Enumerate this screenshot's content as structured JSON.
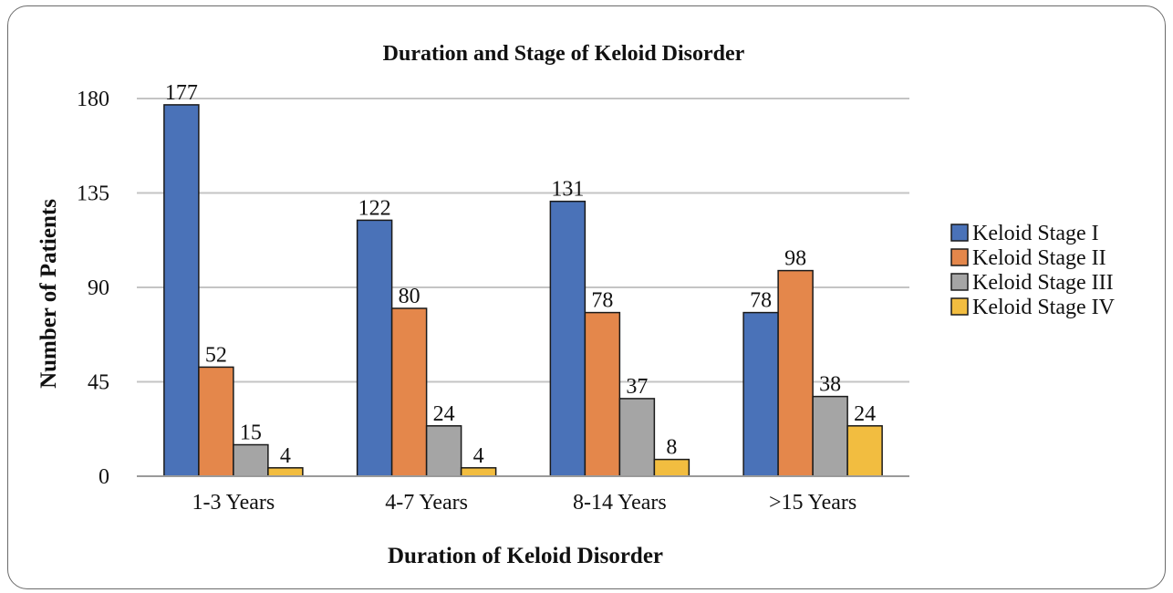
{
  "chart_data": {
    "type": "bar",
    "title": "Duration and Stage of Keloid Disorder",
    "xlabel": "Duration of Keloid Disorder",
    "ylabel": "Number of Patients",
    "categories": [
      "1-3 Years",
      "4-7 Years",
      "8-14 Years",
      ">15 Years"
    ],
    "series": [
      {
        "name": "Keloid Stage I",
        "color": "#4a72b8",
        "values": [
          177,
          122,
          131,
          78
        ]
      },
      {
        "name": "Keloid Stage II",
        "color": "#e4874b",
        "values": [
          52,
          80,
          78,
          98
        ]
      },
      {
        "name": "Keloid Stage III",
        "color": "#a5a5a5",
        "values": [
          15,
          24,
          37,
          38
        ]
      },
      {
        "name": "Keloid Stage IV",
        "color": "#f2bd40",
        "values": [
          4,
          4,
          8,
          24
        ]
      }
    ],
    "ylim": [
      0,
      180
    ],
    "yticks": [
      0,
      45,
      90,
      135,
      180
    ],
    "grid": true,
    "legend": "right"
  }
}
